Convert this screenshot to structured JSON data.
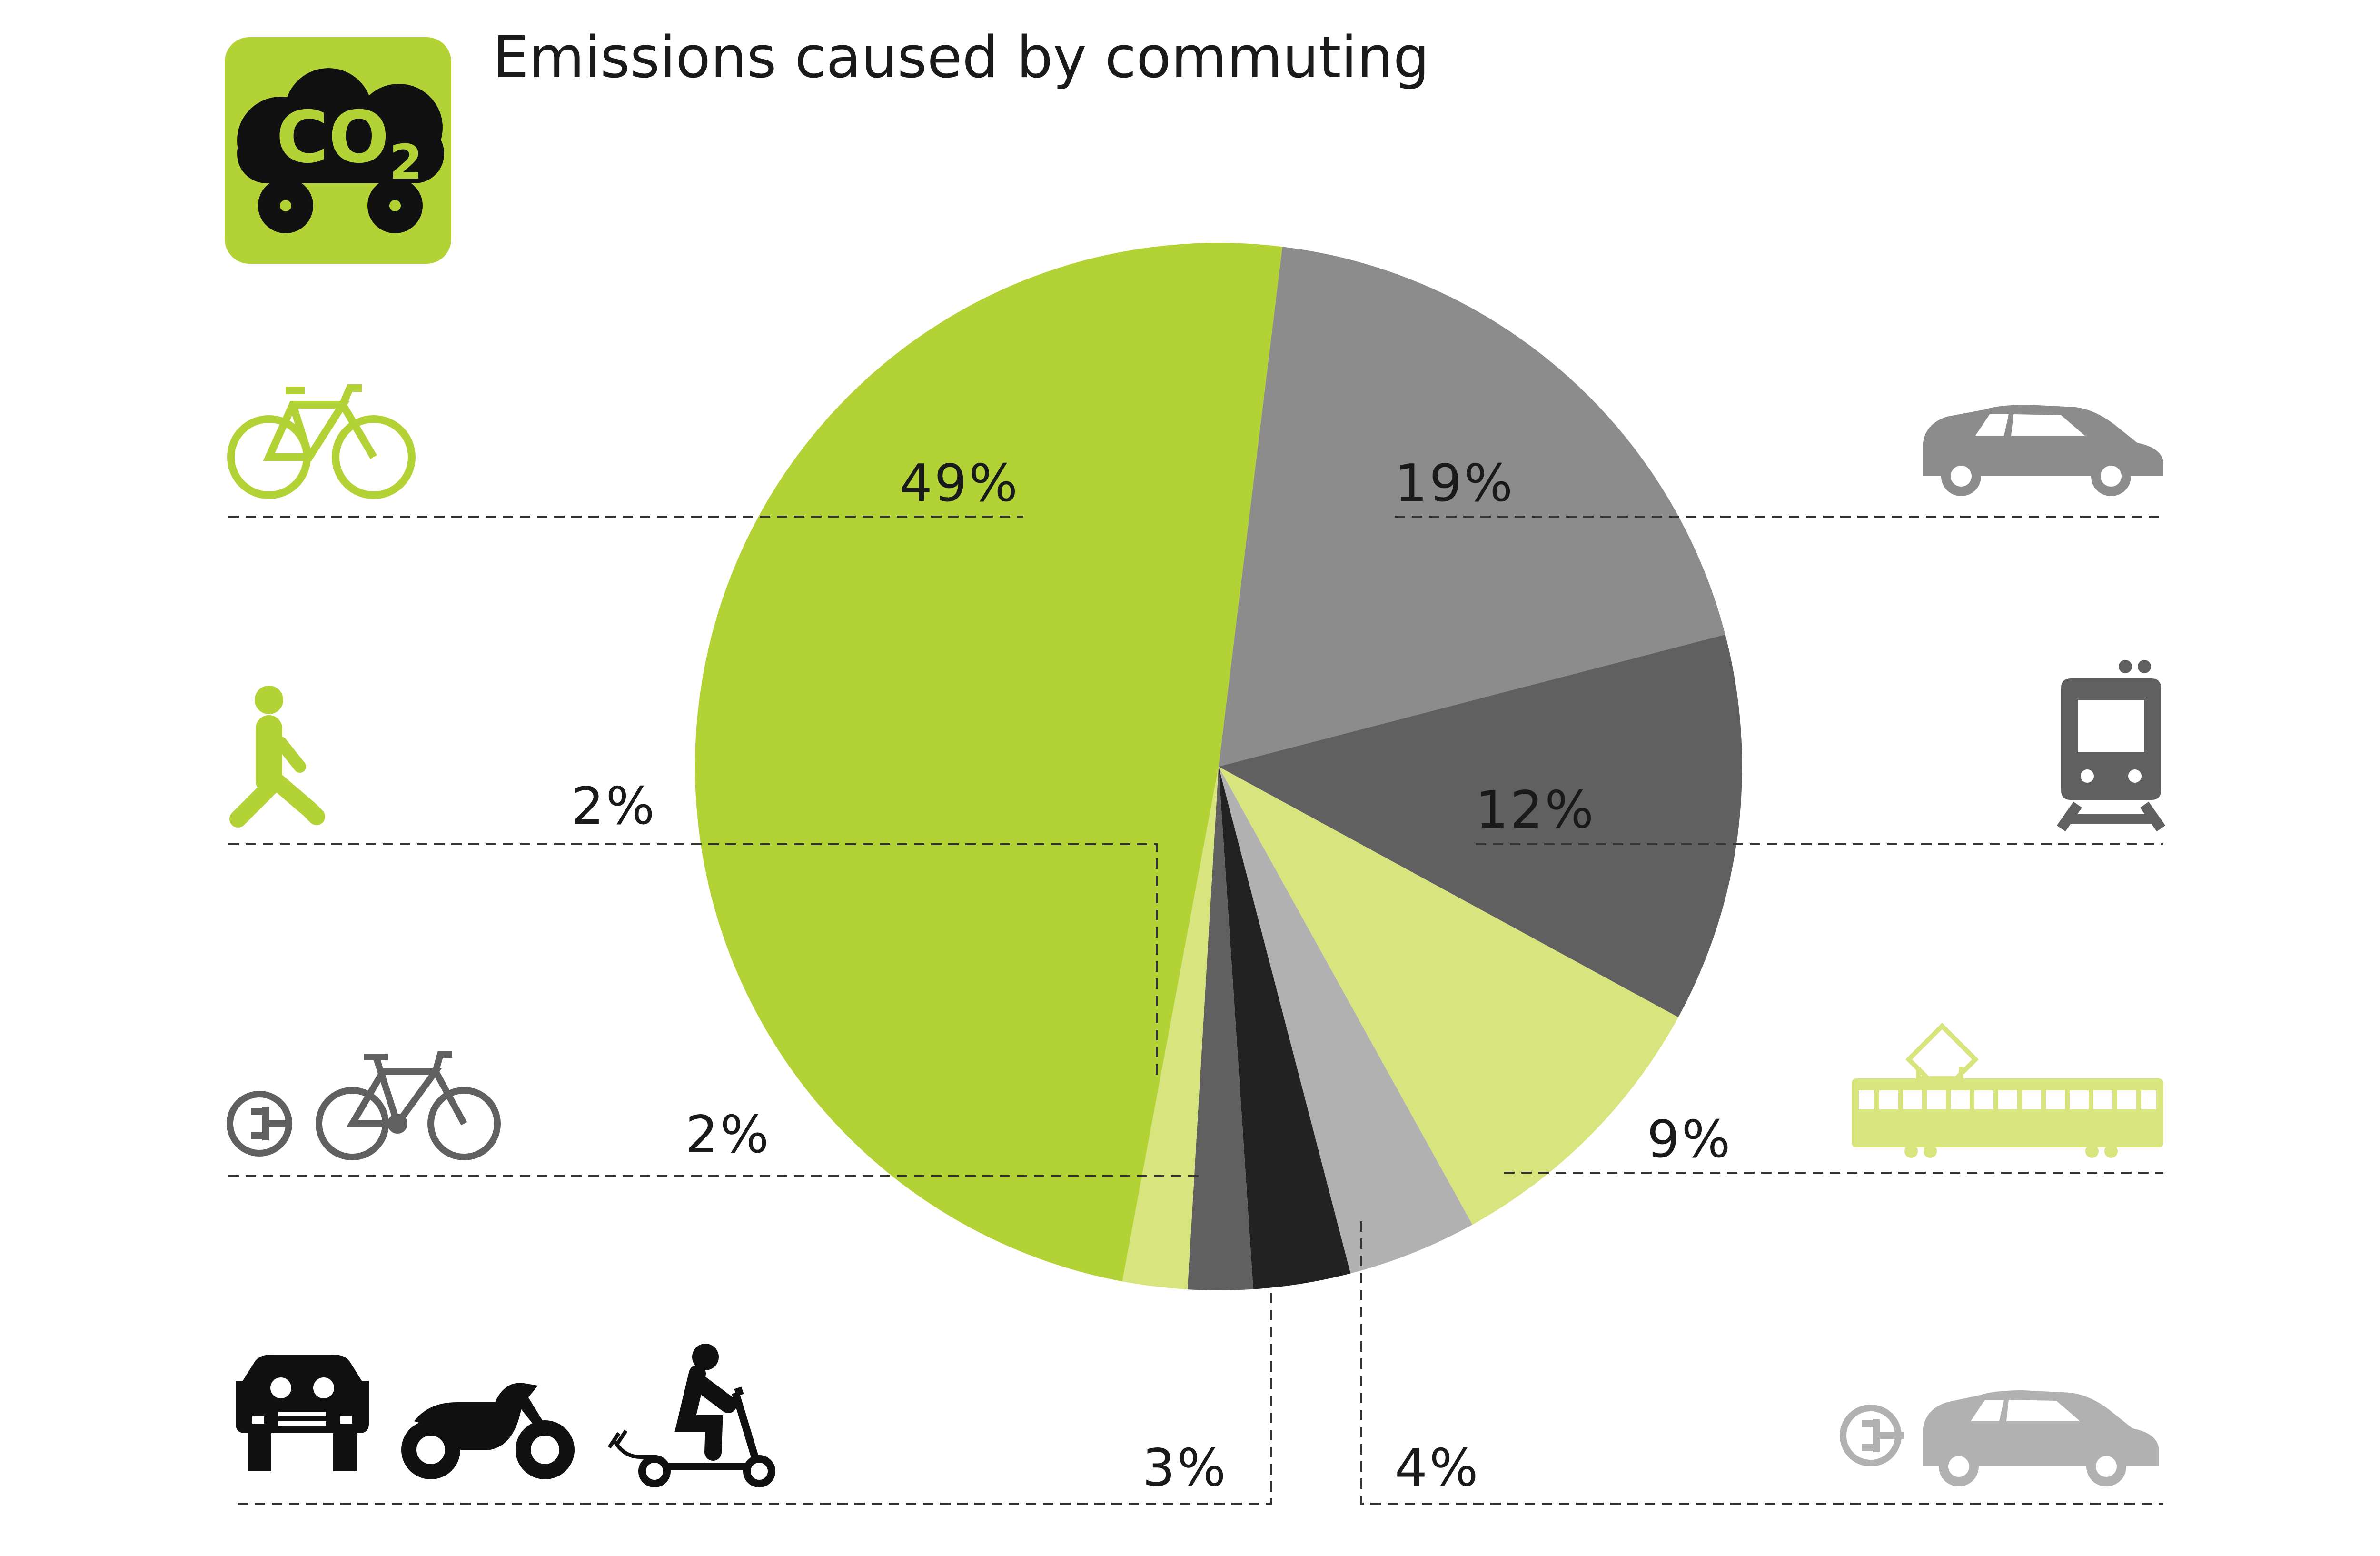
{
  "chart_data": {
    "type": "pie",
    "title": "Emissions caused by commuting",
    "badge_text": "CO",
    "badge_sub": "2",
    "start_angle_deg": 7,
    "slices": [
      {
        "value": 19,
        "label": "19%",
        "color": "#8c8c8c",
        "icon": "car-icon"
      },
      {
        "value": 12,
        "label": "12%",
        "color": "#606060",
        "icon": "train-icon"
      },
      {
        "value": 9,
        "label": "9%",
        "color": "#d8e47e",
        "icon": "tram-icon"
      },
      {
        "value": 4,
        "label": "4%",
        "color": "#b1b1b1",
        "icon": "electric-car-icon"
      },
      {
        "value": 3,
        "label": "3%",
        "color": "#222222",
        "icon": "car-motorbike-escooter-icons"
      },
      {
        "value": 2,
        "label": "2%",
        "color": "#606060",
        "icon": "e-bike-icon"
      },
      {
        "value": 2,
        "label": "2%",
        "color": "#d8e47e",
        "icon": "walking-person-icon"
      },
      {
        "value": 49,
        "label": "49%",
        "color": "#b2d235",
        "icon": "bicycle-icon"
      }
    ],
    "colors": {
      "accent_green": "#b2d235",
      "light_green": "#d8e47e",
      "icon_gray": "#8c8c8c"
    }
  }
}
